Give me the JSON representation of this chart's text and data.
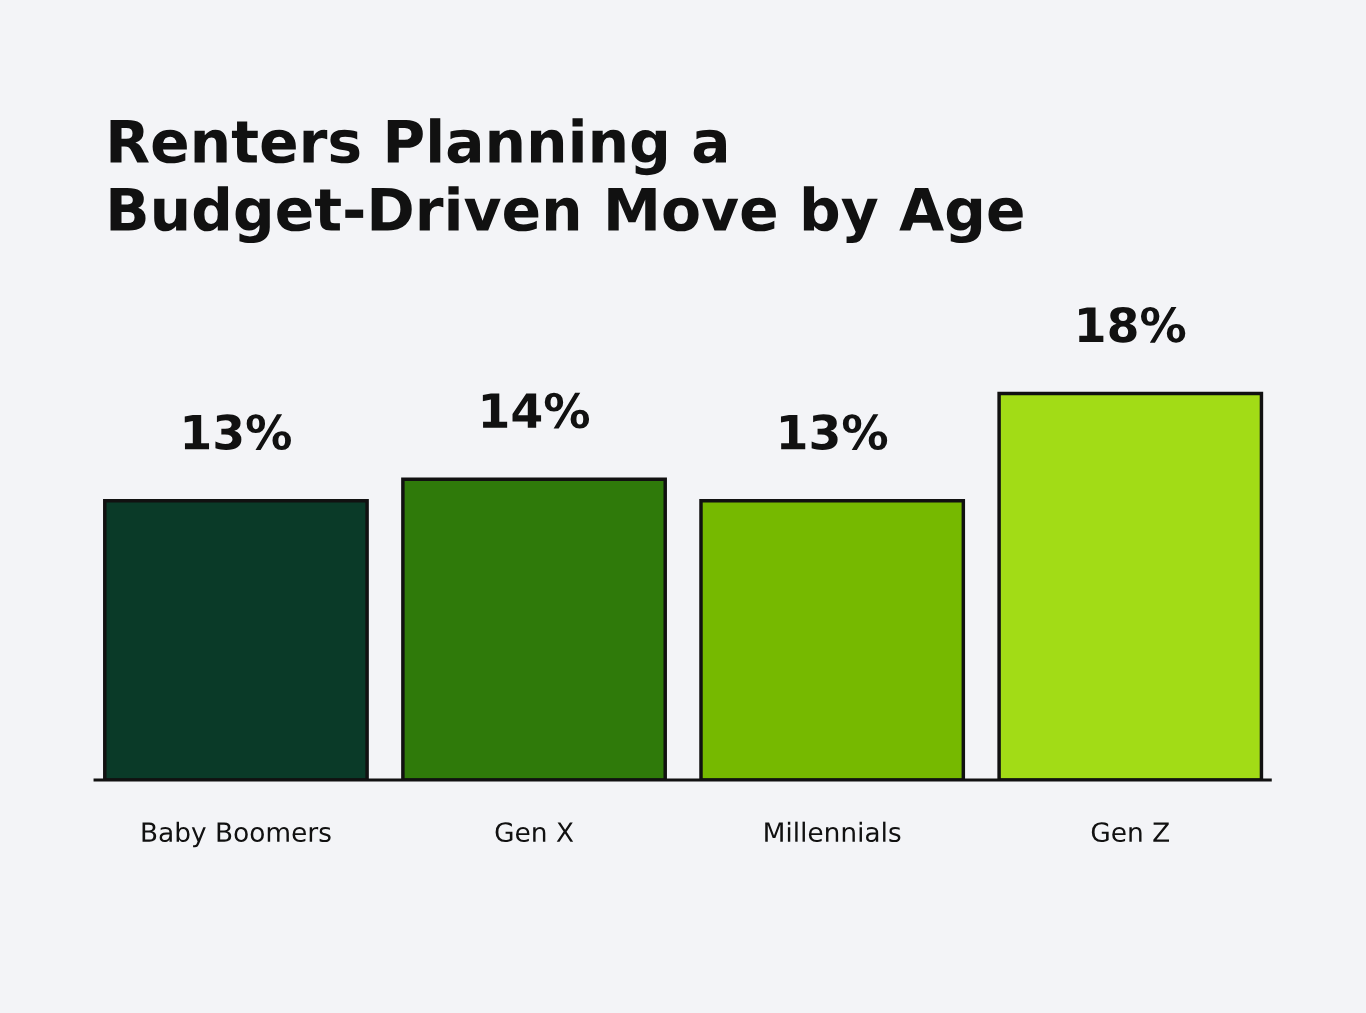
{
  "chart_data": {
    "type": "bar",
    "title": "Renters Planning a\nBudget-Driven Move by Age",
    "categories": [
      "Baby Boomers",
      "Gen X",
      "Millennials",
      "Gen Z"
    ],
    "values": [
      13,
      14,
      13,
      18
    ],
    "colors": [
      "#0a3a28",
      "#2f7a0a",
      "#76b900",
      "#a2dc16"
    ],
    "value_labels": [
      "13%",
      "14%",
      "13%",
      "18%"
    ],
    "grid": false,
    "legend": false
  }
}
